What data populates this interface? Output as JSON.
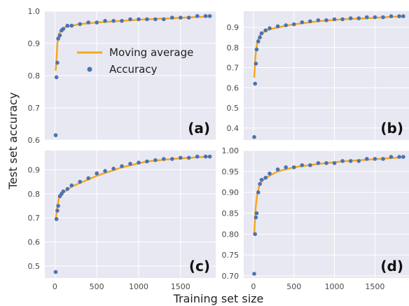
{
  "figure": {
    "xlabel": "Training set size",
    "ylabel": "Test set accuracy",
    "legend": {
      "placement": "top-left of panel (a)",
      "entries": [
        "Moving average",
        "Accuracy"
      ]
    }
  },
  "colors": {
    "panel_bg": "#e7e8f1",
    "grid": "#ffffff",
    "line": "#f5a623",
    "points": "#4c72b0"
  },
  "chart_data": [
    {
      "type": "line",
      "label": "(a)",
      "xlim": [
        -120,
        1920
      ],
      "ylim": [
        0.6,
        1.0
      ],
      "x_ticks": [],
      "y_ticks": [
        0.6,
        0.7,
        0.8,
        0.9,
        1.0
      ],
      "y_tick_labels": [
        "0.6",
        "0.7",
        "0.8",
        "0.9",
        "1.0"
      ],
      "grid": true,
      "series": [
        {
          "name": "Accuracy",
          "style": "points",
          "x": [
            10,
            20,
            30,
            40,
            60,
            80,
            100,
            150,
            200,
            300,
            400,
            500,
            600,
            700,
            800,
            900,
            1000,
            1100,
            1200,
            1300,
            1400,
            1500,
            1600,
            1700,
            1800,
            1850
          ],
          "y": [
            0.615,
            0.795,
            0.84,
            0.915,
            0.925,
            0.94,
            0.945,
            0.955,
            0.955,
            0.96,
            0.965,
            0.965,
            0.97,
            0.97,
            0.97,
            0.975,
            0.975,
            0.975,
            0.975,
            0.975,
            0.98,
            0.98,
            0.98,
            0.985,
            0.985,
            0.985
          ]
        },
        {
          "name": "Moving average",
          "style": "line",
          "x": [
            10,
            20,
            30,
            50,
            80,
            120,
            200,
            300,
            500,
            800,
            1100,
            1400,
            1700,
            1850
          ],
          "y": [
            0.815,
            0.85,
            0.9,
            0.93,
            0.945,
            0.95,
            0.955,
            0.96,
            0.965,
            0.97,
            0.975,
            0.978,
            0.982,
            0.983
          ]
        }
      ]
    },
    {
      "type": "line",
      "label": "(b)",
      "xlim": [
        -120,
        1920
      ],
      "ylim": [
        0.34,
        0.98
      ],
      "x_ticks": [],
      "y_ticks": [
        0.4,
        0.5,
        0.6,
        0.7,
        0.8,
        0.9
      ],
      "y_tick_labels": [
        "0.4",
        "0.5",
        "0.6",
        "0.7",
        "0.8",
        "0.9"
      ],
      "grid": true,
      "series": [
        {
          "name": "Accuracy",
          "style": "points",
          "x": [
            10,
            20,
            30,
            40,
            60,
            80,
            100,
            150,
            200,
            300,
            400,
            500,
            600,
            700,
            800,
            900,
            1000,
            1100,
            1200,
            1300,
            1400,
            1500,
            1600,
            1700,
            1800,
            1850
          ],
          "y": [
            0.355,
            0.62,
            0.72,
            0.79,
            0.83,
            0.85,
            0.87,
            0.885,
            0.895,
            0.905,
            0.91,
            0.915,
            0.925,
            0.93,
            0.935,
            0.935,
            0.94,
            0.94,
            0.945,
            0.945,
            0.95,
            0.95,
            0.95,
            0.955,
            0.955,
            0.955
          ]
        },
        {
          "name": "Moving average",
          "style": "line",
          "x": [
            10,
            20,
            30,
            50,
            80,
            120,
            200,
            300,
            500,
            800,
            1100,
            1400,
            1700,
            1850
          ],
          "y": [
            0.65,
            0.73,
            0.78,
            0.83,
            0.86,
            0.875,
            0.89,
            0.9,
            0.915,
            0.93,
            0.94,
            0.945,
            0.952,
            0.955
          ]
        }
      ]
    },
    {
      "type": "line",
      "label": "(c)",
      "xlim": [
        -120,
        1920
      ],
      "ylim": [
        0.45,
        0.98
      ],
      "x_ticks": [
        0,
        500,
        1000,
        1500
      ],
      "y_ticks": [
        0.5,
        0.6,
        0.7,
        0.8,
        0.9
      ],
      "y_tick_labels": [
        "0.5",
        "0.6",
        "0.7",
        "0.8",
        "0.9"
      ],
      "x_tick_labels": [
        "0",
        "500",
        "1000",
        "1500"
      ],
      "grid": true,
      "series": [
        {
          "name": "Accuracy",
          "style": "points",
          "x": [
            10,
            20,
            30,
            40,
            60,
            80,
            100,
            150,
            200,
            300,
            400,
            500,
            600,
            700,
            800,
            900,
            1000,
            1100,
            1200,
            1300,
            1400,
            1500,
            1600,
            1700,
            1800,
            1850
          ],
          "y": [
            0.475,
            0.695,
            0.73,
            0.75,
            0.79,
            0.8,
            0.81,
            0.82,
            0.835,
            0.85,
            0.865,
            0.885,
            0.895,
            0.905,
            0.915,
            0.925,
            0.93,
            0.935,
            0.94,
            0.945,
            0.945,
            0.95,
            0.95,
            0.955,
            0.955,
            0.955
          ]
        },
        {
          "name": "Moving average",
          "style": "line",
          "x": [
            10,
            20,
            30,
            50,
            80,
            120,
            200,
            300,
            500,
            800,
            1100,
            1400,
            1700,
            1850
          ],
          "y": [
            0.69,
            0.72,
            0.745,
            0.785,
            0.8,
            0.81,
            0.83,
            0.845,
            0.875,
            0.91,
            0.935,
            0.945,
            0.952,
            0.955
          ]
        }
      ]
    },
    {
      "type": "line",
      "label": "(d)",
      "xlim": [
        -120,
        1920
      ],
      "ylim": [
        0.695,
        1.0
      ],
      "x_ticks": [
        0,
        500,
        1000,
        1500
      ],
      "y_ticks": [
        0.7,
        0.75,
        0.8,
        0.85,
        0.9,
        0.95,
        1.0
      ],
      "y_tick_labels": [
        "0.70",
        "0.75",
        "0.80",
        "0.85",
        "0.90",
        "0.95",
        "1.00"
      ],
      "x_tick_labels": [
        "0",
        "500",
        "1000",
        "1500"
      ],
      "grid": true,
      "series": [
        {
          "name": "Accuracy",
          "style": "points",
          "x": [
            10,
            20,
            30,
            40,
            60,
            80,
            100,
            150,
            200,
            300,
            400,
            500,
            600,
            700,
            800,
            900,
            1000,
            1100,
            1200,
            1300,
            1400,
            1500,
            1600,
            1700,
            1800,
            1850
          ],
          "y": [
            0.705,
            0.8,
            0.84,
            0.85,
            0.9,
            0.92,
            0.93,
            0.935,
            0.945,
            0.955,
            0.96,
            0.96,
            0.965,
            0.965,
            0.97,
            0.97,
            0.97,
            0.975,
            0.975,
            0.975,
            0.98,
            0.98,
            0.98,
            0.985,
            0.985,
            0.985
          ]
        },
        {
          "name": "Moving average",
          "style": "line",
          "x": [
            10,
            20,
            30,
            50,
            80,
            120,
            200,
            300,
            500,
            800,
            1100,
            1400,
            1700,
            1850
          ],
          "y": [
            0.8,
            0.84,
            0.87,
            0.9,
            0.92,
            0.93,
            0.94,
            0.95,
            0.96,
            0.968,
            0.974,
            0.978,
            0.982,
            0.984
          ]
        }
      ]
    }
  ]
}
